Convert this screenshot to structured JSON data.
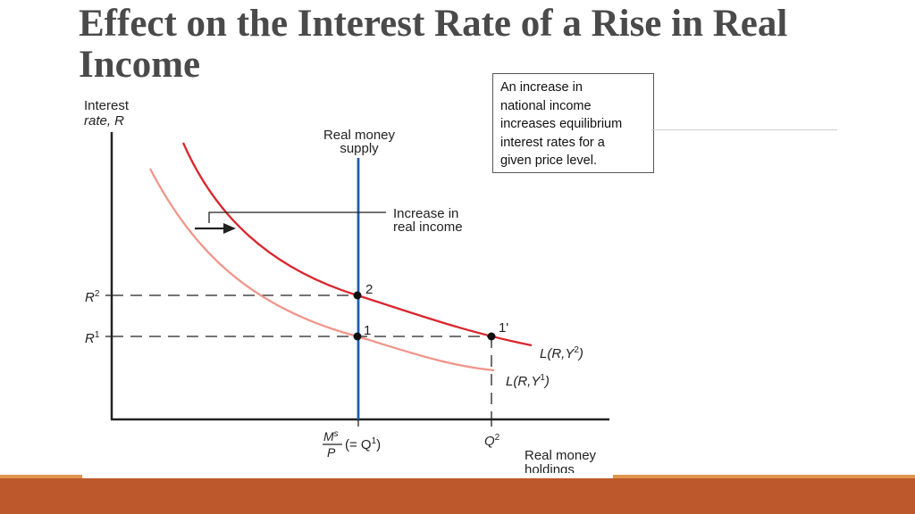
{
  "title": {
    "line1": "Effect on the Interest Rate of a Rise in Real",
    "line2": "Income"
  },
  "callout": {
    "lines": [
      "An increase in",
      "national income",
      "increases equilibrium",
      "interest rates for a",
      "given price level."
    ]
  },
  "diagram": {
    "y_axis_label": [
      "Interest",
      "rate, R"
    ],
    "x_axis_label": [
      "Real money",
      "holdings"
    ],
    "supply_label": [
      "Real money",
      "supply"
    ],
    "shift_label": [
      "Increase in",
      "real income"
    ],
    "r2_label": "R",
    "r2_sup": "2",
    "r1_label": "R",
    "r1_sup": "1",
    "point_2": "2",
    "point_1": "1",
    "point_1prime": "1'",
    "curve_high_label": "L(R,Y",
    "curve_high_sup": "2",
    "curve_high_close": ")",
    "curve_low_label": "L(R,Y",
    "curve_low_sup": "1",
    "curve_low_close": ")",
    "ms_num": "M",
    "ms_sup": "s",
    "ms_den": "P",
    "ms_rest": "(= Q",
    "ms_rest_sup": "1",
    "ms_close": ")",
    "q2_label": "Q",
    "q2_sup": "2",
    "colors": {
      "curve_high": "#d9262e",
      "curve_low": "#f0958a",
      "supply": "#1f5fae",
      "axes": "#222222"
    }
  }
}
